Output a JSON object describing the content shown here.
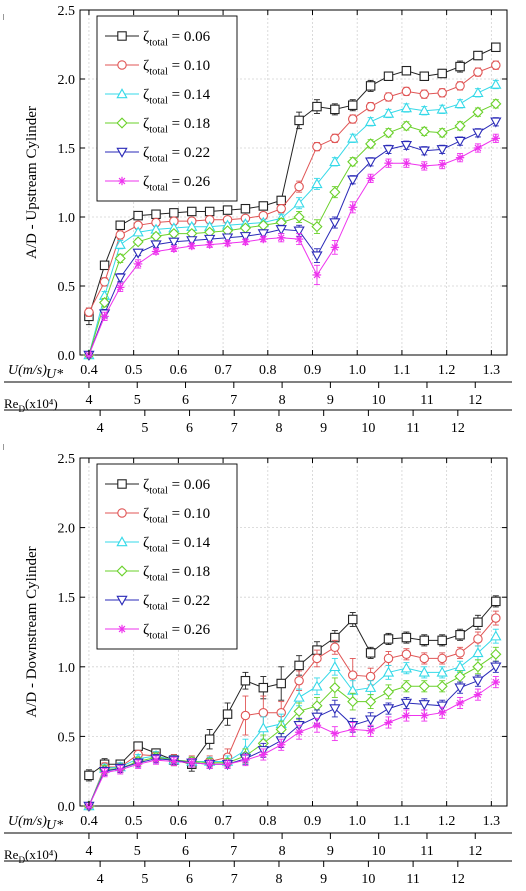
{
  "chart_data": [
    {
      "type": "line",
      "ylabel": "A/D - Upstream Cylinder",
      "ylim": [
        0,
        2.5
      ],
      "yticks": [
        "0.0",
        "0.5",
        "1.0",
        "1.5",
        "2.0",
        "2.5"
      ],
      "xlim": [
        0.38,
        1.335
      ],
      "grid": true,
      "legend_position": "top-left",
      "x": [
        0.4,
        0.435,
        0.47,
        0.51,
        0.55,
        0.59,
        0.63,
        0.67,
        0.71,
        0.75,
        0.79,
        0.83,
        0.87,
        0.91,
        0.95,
        0.99,
        1.03,
        1.07,
        1.11,
        1.15,
        1.19,
        1.23,
        1.27,
        1.31
      ],
      "series": [
        {
          "name": "ζ_total = 0.06",
          "marker": "square",
          "color": "#222222",
          "values": [
            0.28,
            0.65,
            0.94,
            1.01,
            1.02,
            1.03,
            1.04,
            1.04,
            1.05,
            1.06,
            1.08,
            1.12,
            1.7,
            1.8,
            1.78,
            1.81,
            1.95,
            2.02,
            2.06,
            2.02,
            2.04,
            2.09,
            2.17,
            2.23
          ],
          "errors": [
            0.06,
            0.03,
            0.03,
            0.02,
            0.02,
            0.02,
            0.02,
            0.02,
            0.02,
            0.02,
            0.02,
            0.03,
            0.06,
            0.05,
            0.04,
            0.04,
            0.04,
            0.03,
            0.03,
            0.03,
            0.03,
            0.04,
            0.03,
            0.03
          ]
        },
        {
          "name": "ζ_total = 0.10",
          "marker": "circle",
          "color": "#e05555",
          "values": [
            0.31,
            0.53,
            0.87,
            0.94,
            0.96,
            0.97,
            0.97,
            0.98,
            0.98,
            0.99,
            1.01,
            1.06,
            1.22,
            1.51,
            1.57,
            1.71,
            1.8,
            1.87,
            1.91,
            1.89,
            1.9,
            1.95,
            2.05,
            2.1
          ],
          "errors": [
            0.03,
            0.03,
            0.03,
            0.02,
            0.02,
            0.02,
            0.02,
            0.02,
            0.02,
            0.02,
            0.02,
            0.03,
            0.04,
            0.03,
            0.03,
            0.03,
            0.03,
            0.03,
            0.03,
            0.03,
            0.03,
            0.03,
            0.03,
            0.03
          ]
        },
        {
          "name": "ζ_total = 0.14",
          "marker": "triangle-up",
          "color": "#35d9e8",
          "values": [
            0.0,
            0.43,
            0.8,
            0.89,
            0.91,
            0.92,
            0.93,
            0.93,
            0.94,
            0.95,
            0.96,
            0.99,
            1.1,
            1.24,
            1.4,
            1.57,
            1.69,
            1.75,
            1.79,
            1.77,
            1.78,
            1.82,
            1.9,
            1.96
          ],
          "errors": [
            0.0,
            0.03,
            0.03,
            0.02,
            0.02,
            0.02,
            0.02,
            0.02,
            0.02,
            0.02,
            0.02,
            0.03,
            0.04,
            0.04,
            0.03,
            0.03,
            0.03,
            0.03,
            0.03,
            0.03,
            0.03,
            0.03,
            0.03,
            0.03
          ]
        },
        {
          "name": "ζ_total = 0.18",
          "marker": "diamond",
          "color": "#6ad12a",
          "values": [
            0.0,
            0.38,
            0.7,
            0.82,
            0.86,
            0.88,
            0.88,
            0.89,
            0.9,
            0.92,
            0.94,
            0.96,
            1.0,
            0.93,
            1.18,
            1.4,
            1.53,
            1.61,
            1.66,
            1.62,
            1.61,
            1.66,
            1.76,
            1.82
          ],
          "errors": [
            0.0,
            0.03,
            0.03,
            0.02,
            0.02,
            0.02,
            0.02,
            0.02,
            0.02,
            0.02,
            0.02,
            0.03,
            0.04,
            0.05,
            0.04,
            0.03,
            0.03,
            0.03,
            0.03,
            0.03,
            0.03,
            0.03,
            0.03,
            0.03
          ]
        },
        {
          "name": "ζ_total = 0.22",
          "marker": "triangle-down",
          "color": "#2a2ab8",
          "values": [
            0.0,
            0.3,
            0.56,
            0.74,
            0.8,
            0.82,
            0.83,
            0.84,
            0.85,
            0.86,
            0.88,
            0.91,
            0.9,
            0.72,
            0.96,
            1.27,
            1.4,
            1.49,
            1.52,
            1.48,
            1.49,
            1.55,
            1.61,
            1.69
          ],
          "errors": [
            0.0,
            0.03,
            0.03,
            0.02,
            0.02,
            0.02,
            0.02,
            0.02,
            0.02,
            0.02,
            0.02,
            0.03,
            0.04,
            0.05,
            0.04,
            0.03,
            0.03,
            0.03,
            0.03,
            0.03,
            0.03,
            0.03,
            0.03,
            0.03
          ]
        },
        {
          "name": "ζ_total = 0.26",
          "marker": "asterisk",
          "color": "#ee33ee",
          "values": [
            0.0,
            0.28,
            0.49,
            0.66,
            0.75,
            0.77,
            0.79,
            0.8,
            0.81,
            0.82,
            0.84,
            0.85,
            0.84,
            0.58,
            0.78,
            1.07,
            1.28,
            1.39,
            1.39,
            1.37,
            1.38,
            1.43,
            1.5,
            1.57
          ],
          "errors": [
            0.0,
            0.03,
            0.03,
            0.03,
            0.02,
            0.02,
            0.02,
            0.02,
            0.02,
            0.02,
            0.02,
            0.03,
            0.04,
            0.07,
            0.05,
            0.04,
            0.03,
            0.03,
            0.03,
            0.03,
            0.03,
            0.03,
            0.03,
            0.03
          ]
        }
      ],
      "x_axes": [
        {
          "label": "U(m/s)",
          "ticks": [
            "0.4",
            "0.5",
            "0.6",
            "0.7",
            "0.8",
            "0.9",
            "1.0",
            "1.1",
            "1.2",
            "1.3"
          ],
          "values": [
            0.4,
            0.5,
            0.6,
            0.7,
            0.8,
            0.9,
            1.0,
            1.1,
            1.2,
            1.3
          ]
        },
        {
          "label": "U*",
          "ticks": [
            "4",
            "5",
            "6",
            "7",
            "8",
            "9",
            "10",
            "11",
            "12"
          ],
          "values": [
            0.4,
            0.508,
            0.616,
            0.724,
            0.832,
            0.94,
            1.048,
            1.156,
            1.264
          ]
        },
        {
          "label": "Re_D(x10⁴)",
          "ticks": [
            "4",
            "5",
            "6",
            "7",
            "8",
            "9",
            "10",
            "11",
            "12"
          ],
          "values": [
            0.425,
            0.525,
            0.625,
            0.725,
            0.825,
            0.925,
            1.025,
            1.125,
            1.225
          ]
        }
      ]
    },
    {
      "type": "line",
      "ylabel": "A/D - Downstream Cylinder",
      "ylim": [
        0,
        2.5
      ],
      "yticks": [
        "0.0",
        "0.5",
        "1.0",
        "1.5",
        "2.0",
        "2.5"
      ],
      "xlim": [
        0.38,
        1.335
      ],
      "grid": true,
      "legend_position": "top-left",
      "x": [
        0.4,
        0.435,
        0.47,
        0.51,
        0.55,
        0.59,
        0.63,
        0.67,
        0.71,
        0.75,
        0.79,
        0.83,
        0.87,
        0.91,
        0.95,
        0.99,
        1.03,
        1.07,
        1.11,
        1.15,
        1.19,
        1.23,
        1.27,
        1.31
      ],
      "series": [
        {
          "name": "ζ_total = 0.06",
          "marker": "square",
          "color": "#222222",
          "values": [
            0.22,
            0.3,
            0.3,
            0.43,
            0.38,
            0.33,
            0.3,
            0.48,
            0.66,
            0.9,
            0.85,
            0.88,
            1.01,
            1.12,
            1.21,
            1.34,
            1.1,
            1.2,
            1.21,
            1.19,
            1.19,
            1.23,
            1.32,
            1.47
          ],
          "errors": [
            0.04,
            0.04,
            0.03,
            0.03,
            0.03,
            0.04,
            0.05,
            0.07,
            0.08,
            0.06,
            0.08,
            0.12,
            0.07,
            0.06,
            0.05,
            0.05,
            0.04,
            0.04,
            0.04,
            0.04,
            0.04,
            0.04,
            0.05,
            0.04
          ]
        },
        {
          "name": "ζ_total = 0.10",
          "marker": "circle",
          "color": "#e05555",
          "values": [
            0.0,
            0.28,
            0.28,
            0.37,
            0.36,
            0.33,
            0.32,
            0.32,
            0.35,
            0.65,
            0.67,
            0.67,
            0.9,
            1.06,
            1.14,
            0.94,
            0.93,
            1.06,
            1.09,
            1.06,
            1.06,
            1.1,
            1.2,
            1.35
          ],
          "errors": [
            0.0,
            0.03,
            0.03,
            0.03,
            0.03,
            0.04,
            0.04,
            0.04,
            0.06,
            0.14,
            0.12,
            0.08,
            0.07,
            0.06,
            0.05,
            0.12,
            0.06,
            0.05,
            0.04,
            0.04,
            0.04,
            0.04,
            0.05,
            0.05
          ]
        },
        {
          "name": "ζ_total = 0.14",
          "marker": "triangle-up",
          "color": "#35d9e8",
          "values": [
            0.0,
            0.27,
            0.28,
            0.34,
            0.36,
            0.33,
            0.32,
            0.32,
            0.32,
            0.4,
            0.56,
            0.59,
            0.78,
            0.86,
            1.0,
            0.83,
            0.85,
            0.96,
            0.99,
            0.96,
            0.96,
            1.0,
            1.1,
            1.22
          ],
          "errors": [
            0.0,
            0.03,
            0.03,
            0.03,
            0.03,
            0.03,
            0.03,
            0.03,
            0.04,
            0.08,
            0.08,
            0.07,
            0.06,
            0.06,
            0.06,
            0.07,
            0.05,
            0.05,
            0.04,
            0.04,
            0.04,
            0.04,
            0.05,
            0.05
          ]
        },
        {
          "name": "ζ_total = 0.18",
          "marker": "diamond",
          "color": "#6ad12a",
          "values": [
            0.0,
            0.26,
            0.27,
            0.32,
            0.35,
            0.33,
            0.32,
            0.31,
            0.31,
            0.36,
            0.45,
            0.55,
            0.68,
            0.72,
            0.85,
            0.75,
            0.75,
            0.82,
            0.86,
            0.86,
            0.86,
            0.93,
            1.0,
            1.09
          ],
          "errors": [
            0.0,
            0.03,
            0.03,
            0.03,
            0.03,
            0.03,
            0.03,
            0.03,
            0.03,
            0.05,
            0.06,
            0.06,
            0.06,
            0.06,
            0.07,
            0.06,
            0.05,
            0.05,
            0.04,
            0.04,
            0.04,
            0.04,
            0.05,
            0.05
          ]
        },
        {
          "name": "ζ_total = 0.22",
          "marker": "triangle-down",
          "color": "#2a2ab8",
          "values": [
            0.0,
            0.25,
            0.27,
            0.31,
            0.34,
            0.33,
            0.31,
            0.3,
            0.3,
            0.34,
            0.4,
            0.47,
            0.58,
            0.64,
            0.7,
            0.58,
            0.62,
            0.7,
            0.74,
            0.73,
            0.72,
            0.85,
            0.9,
            1.0
          ],
          "errors": [
            0.0,
            0.03,
            0.03,
            0.03,
            0.03,
            0.03,
            0.03,
            0.03,
            0.03,
            0.04,
            0.05,
            0.05,
            0.05,
            0.05,
            0.06,
            0.05,
            0.05,
            0.04,
            0.04,
            0.04,
            0.04,
            0.04,
            0.04,
            0.04
          ]
        },
        {
          "name": "ζ_total = 0.26",
          "marker": "asterisk",
          "color": "#ee33ee",
          "values": [
            0.0,
            0.24,
            0.26,
            0.3,
            0.33,
            0.32,
            0.31,
            0.3,
            0.3,
            0.33,
            0.37,
            0.44,
            0.53,
            0.58,
            0.52,
            0.55,
            0.54,
            0.6,
            0.65,
            0.65,
            0.67,
            0.74,
            0.8,
            0.89
          ],
          "errors": [
            0.0,
            0.03,
            0.03,
            0.03,
            0.03,
            0.03,
            0.03,
            0.03,
            0.03,
            0.04,
            0.04,
            0.04,
            0.05,
            0.05,
            0.05,
            0.05,
            0.04,
            0.04,
            0.04,
            0.04,
            0.04,
            0.04,
            0.04,
            0.04
          ]
        }
      ],
      "x_axes": [
        {
          "label": "U(m/s)",
          "ticks": [
            "0.4",
            "0.5",
            "0.6",
            "0.7",
            "0.8",
            "0.9",
            "1.0",
            "1.1",
            "1.2",
            "1.3"
          ],
          "values": [
            0.4,
            0.5,
            0.6,
            0.7,
            0.8,
            0.9,
            1.0,
            1.1,
            1.2,
            1.3
          ]
        },
        {
          "label": "U*",
          "ticks": [
            "4",
            "5",
            "6",
            "7",
            "8",
            "9",
            "10",
            "11",
            "12"
          ],
          "values": [
            0.4,
            0.508,
            0.616,
            0.724,
            0.832,
            0.94,
            1.048,
            1.156,
            1.264
          ]
        },
        {
          "label": "Re_D(x10⁴)",
          "ticks": [
            "4",
            "5",
            "6",
            "7",
            "8",
            "9",
            "10",
            "11",
            "12"
          ],
          "values": [
            0.425,
            0.525,
            0.625,
            0.725,
            0.825,
            0.925,
            1.025,
            1.125,
            1.225
          ]
        }
      ]
    }
  ]
}
